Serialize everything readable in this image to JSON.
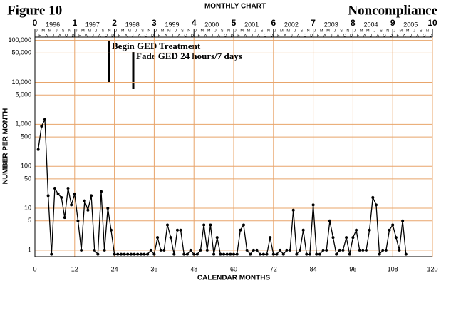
{
  "chart_data": {
    "type": "line",
    "title": "Figure 10",
    "subtitle": "MONTHLY CHART",
    "behavior": "Noncompliance",
    "xlabel": "CALENDAR MONTHS",
    "ylabel": "NUMBER PER MONTH",
    "log_y": true,
    "grid": true,
    "grid_color": "#e8a46a",
    "xlim": [
      0,
      120
    ],
    "xticks": [
      0,
      12,
      24,
      36,
      48,
      60,
      72,
      84,
      96,
      108,
      120
    ],
    "x2lim": [
      0,
      10
    ],
    "x2ticks": [
      0,
      1,
      2,
      3,
      4,
      5,
      6,
      7,
      8,
      9,
      10
    ],
    "year_labels": [
      "1996",
      "1997",
      "1998",
      "1999",
      "2000",
      "2001",
      "2002",
      "2003",
      "2004",
      "2005"
    ],
    "month_letters": [
      "J",
      "F",
      "M",
      "A",
      "M",
      "J",
      "J",
      "A",
      "S",
      "O",
      "N",
      "D"
    ],
    "ylim": [
      0.7,
      120000
    ],
    "yticks": [
      1,
      5,
      10,
      50,
      100,
      500,
      {
        "value": 1000,
        "label": "1,000"
      },
      {
        "value": 5000,
        "label": "5,000"
      },
      {
        "value": 10000,
        "label": "10,000"
      },
      {
        "value": 50000,
        "label": "50,000"
      },
      {
        "value": 100000,
        "label": "100,000"
      }
    ],
    "annotations": [
      "Begin GED Treatment",
      "Fade GED 24 hours/7 days"
    ],
    "x": [
      1,
      2,
      3,
      4,
      5,
      6,
      7,
      8,
      9,
      10,
      11,
      12,
      13,
      14,
      15,
      16,
      17,
      18,
      19,
      20,
      21,
      22,
      23,
      24,
      25,
      26,
      27,
      28,
      29,
      30,
      31,
      32,
      33,
      34,
      35,
      36,
      37,
      38,
      39,
      40,
      41,
      42,
      43,
      44,
      45,
      46,
      47,
      48,
      49,
      50,
      51,
      52,
      53,
      54,
      55,
      56,
      57,
      58,
      59,
      60,
      61,
      62,
      63,
      64,
      65,
      66,
      67,
      68,
      69,
      70,
      71,
      72,
      73,
      74,
      75,
      76,
      77,
      78,
      79,
      80,
      81,
      82,
      83,
      84,
      85,
      86,
      87,
      88,
      89,
      90,
      91,
      92,
      93,
      94,
      95,
      96,
      97,
      98,
      99,
      100,
      101,
      102,
      103,
      104,
      105,
      106,
      107,
      108,
      109,
      110,
      111,
      112
    ],
    "series": [
      {
        "name": "Noncompliance",
        "color": "#000000",
        "values": [
          250,
          900,
          1300,
          20,
          0.8,
          30,
          22,
          18,
          6,
          30,
          12,
          22,
          5,
          1,
          15,
          9,
          20,
          1,
          0.8,
          25,
          1,
          10,
          3,
          0.8,
          0.8,
          0.8,
          0.8,
          0.8,
          0.8,
          0.8,
          0.8,
          0.8,
          0.8,
          0.8,
          1,
          0.8,
          2,
          1,
          1,
          4,
          2,
          0.8,
          3,
          3,
          0.8,
          0.8,
          1,
          0.8,
          0.8,
          1,
          4,
          1,
          4,
          0.8,
          2,
          0.8,
          0.8,
          0.8,
          0.8,
          0.8,
          0.8,
          3,
          4,
          1,
          0.8,
          1,
          1,
          0.8,
          0.8,
          0.8,
          2,
          0.8,
          0.8,
          1,
          0.8,
          1,
          1,
          9,
          0.8,
          1,
          3,
          0.8,
          0.8,
          12,
          0.8,
          0.8,
          1,
          1,
          5,
          2,
          0.8,
          1,
          1,
          2,
          0.8,
          2,
          3,
          1,
          1,
          1,
          3,
          18,
          12,
          0.8,
          1,
          1,
          3,
          4,
          2,
          1,
          5,
          0.8
        ]
      }
    ]
  }
}
